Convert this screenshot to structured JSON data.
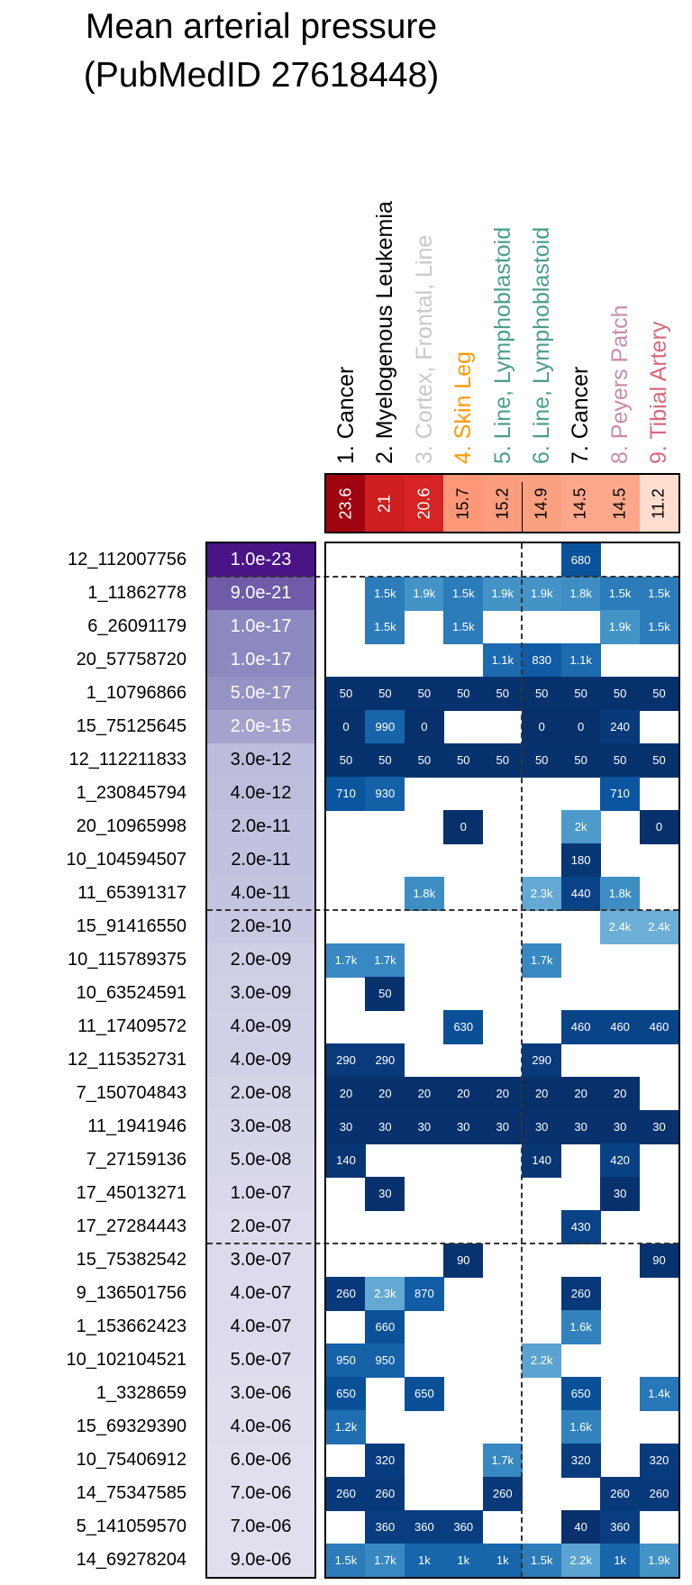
{
  "chart_data": {
    "type": "heatmap",
    "title": [
      "Mean arterial pressure",
      "(PubMedID 27618448)"
    ],
    "columns": [
      {
        "label": "1. Cancer",
        "color": "#000000",
        "score": "23.6"
      },
      {
        "label": "2. Myelogenous Leukemia",
        "color": "#000000",
        "score": "21"
      },
      {
        "label": "3. Cortex, Frontal, Line",
        "color": "#c8c8c8",
        "score": "20.6"
      },
      {
        "label": "4. Skin Leg",
        "color": "#ff9900",
        "score": "15.7"
      },
      {
        "label": "5. Line, Lymphoblastoid",
        "color": "#4a9f8a",
        "score": "15.2"
      },
      {
        "label": "6. Line, Lymphoblastoid",
        "color": "#4a9f8a",
        "score": "14.9"
      },
      {
        "label": "7. Cancer",
        "color": "#000000",
        "score": "14.5"
      },
      {
        "label": "8. Peyers Patch",
        "color": "#cc8aaa",
        "score": "14.5"
      },
      {
        "label": "9. Tibial Artery",
        "color": "#d9687a",
        "score": "11.2"
      }
    ],
    "rows": [
      {
        "snp": "12_112007756",
        "p": "1.0e-23",
        "cells": [
          null,
          null,
          null,
          null,
          null,
          null,
          "680",
          null,
          null
        ]
      },
      {
        "snp": "1_11862778",
        "p": "9.0e-21",
        "cells": [
          null,
          "1.5k",
          "1.9k",
          "1.5k",
          "1.9k",
          "1.9k",
          "1.8k",
          "1.5k",
          "1.5k"
        ]
      },
      {
        "snp": "6_26091179",
        "p": "1.0e-17",
        "cells": [
          null,
          "1.5k",
          null,
          "1.5k",
          null,
          null,
          null,
          "1.9k",
          "1.5k"
        ]
      },
      {
        "snp": "20_57758720",
        "p": "1.0e-17",
        "cells": [
          null,
          null,
          null,
          null,
          "1.1k",
          "830",
          "1.1k",
          null,
          null
        ]
      },
      {
        "snp": "1_10796866",
        "p": "5.0e-17",
        "cells": [
          "50",
          "50",
          "50",
          "50",
          "50",
          "50",
          "50",
          "50",
          "50"
        ]
      },
      {
        "snp": "15_75125645",
        "p": "2.0e-15",
        "cells": [
          "0",
          "990",
          "0",
          null,
          null,
          "0",
          "0",
          "240",
          null
        ]
      },
      {
        "snp": "12_112211833",
        "p": "3.0e-12",
        "cells": [
          "50",
          "50",
          "50",
          "50",
          "50",
          "50",
          "50",
          "50",
          "50"
        ]
      },
      {
        "snp": "1_230845794",
        "p": "4.0e-12",
        "cells": [
          "710",
          "930",
          null,
          null,
          null,
          null,
          null,
          "710",
          null
        ]
      },
      {
        "snp": "20_10965998",
        "p": "2.0e-11",
        "cells": [
          null,
          null,
          null,
          "0",
          null,
          null,
          "2k",
          null,
          "0"
        ]
      },
      {
        "snp": "10_104594507",
        "p": "2.0e-11",
        "cells": [
          null,
          null,
          null,
          null,
          null,
          null,
          "180",
          null,
          null
        ]
      },
      {
        "snp": "11_65391317",
        "p": "4.0e-11",
        "cells": [
          null,
          null,
          "1.8k",
          null,
          null,
          "2.3k",
          "440",
          "1.8k",
          null
        ]
      },
      {
        "snp": "15_91416550",
        "p": "2.0e-10",
        "cells": [
          null,
          null,
          null,
          null,
          null,
          null,
          null,
          "2.4k",
          "2.4k"
        ]
      },
      {
        "snp": "10_115789375",
        "p": "2.0e-09",
        "cells": [
          "1.7k",
          "1.7k",
          null,
          null,
          null,
          "1.7k",
          null,
          null,
          null
        ]
      },
      {
        "snp": "10_63524591",
        "p": "3.0e-09",
        "cells": [
          null,
          "50",
          null,
          null,
          null,
          null,
          null,
          null,
          null
        ]
      },
      {
        "snp": "11_17409572",
        "p": "4.0e-09",
        "cells": [
          null,
          null,
          null,
          "630",
          null,
          null,
          "460",
          "460",
          "460"
        ]
      },
      {
        "snp": "12_115352731",
        "p": "4.0e-09",
        "cells": [
          "290",
          "290",
          null,
          null,
          null,
          "290",
          null,
          null,
          null
        ]
      },
      {
        "snp": "7_150704843",
        "p": "2.0e-08",
        "cells": [
          "20",
          "20",
          "20",
          "20",
          "20",
          "20",
          "20",
          "20",
          null
        ]
      },
      {
        "snp": "11_1941946",
        "p": "3.0e-08",
        "cells": [
          "30",
          "30",
          "30",
          "30",
          "30",
          "30",
          "30",
          "30",
          "30"
        ]
      },
      {
        "snp": "7_27159136",
        "p": "5.0e-08",
        "cells": [
          "140",
          null,
          null,
          null,
          null,
          "140",
          null,
          "420",
          null
        ]
      },
      {
        "snp": "17_45013271",
        "p": "1.0e-07",
        "cells": [
          null,
          "30",
          null,
          null,
          null,
          null,
          null,
          "30",
          null
        ]
      },
      {
        "snp": "17_27284443",
        "p": "2.0e-07",
        "cells": [
          null,
          null,
          null,
          null,
          null,
          null,
          "430",
          null,
          null
        ]
      },
      {
        "snp": "15_75382542",
        "p": "3.0e-07",
        "cells": [
          null,
          null,
          null,
          "90",
          null,
          null,
          null,
          null,
          "90"
        ]
      },
      {
        "snp": "9_136501756",
        "p": "4.0e-07",
        "cells": [
          "260",
          "2.3k",
          "870",
          null,
          null,
          null,
          "260",
          null,
          null
        ]
      },
      {
        "snp": "1_153662423",
        "p": "4.0e-07",
        "cells": [
          null,
          "660",
          null,
          null,
          null,
          null,
          "1.6k",
          null,
          null
        ]
      },
      {
        "snp": "10_102104521",
        "p": "5.0e-07",
        "cells": [
          "950",
          "950",
          null,
          null,
          null,
          "2.2k",
          null,
          null,
          null
        ]
      },
      {
        "snp": "1_3328659",
        "p": "3.0e-06",
        "cells": [
          "650",
          null,
          "650",
          null,
          null,
          null,
          "650",
          null,
          "1.4k"
        ]
      },
      {
        "snp": "15_69329390",
        "p": "4.0e-06",
        "cells": [
          "1.2k",
          null,
          null,
          null,
          null,
          null,
          "1.6k",
          null,
          null
        ]
      },
      {
        "snp": "10_75406912",
        "p": "6.0e-06",
        "cells": [
          null,
          "320",
          null,
          null,
          "1.7k",
          null,
          "320",
          null,
          "320"
        ]
      },
      {
        "snp": "14_75347585",
        "p": "7.0e-06",
        "cells": [
          "260",
          "260",
          null,
          null,
          "260",
          null,
          null,
          "260",
          "260"
        ]
      },
      {
        "snp": "5_141059570",
        "p": "7.0e-06",
        "cells": [
          null,
          "360",
          "360",
          "360",
          null,
          null,
          "40",
          "360",
          null
        ]
      },
      {
        "snp": "14_69278204",
        "p": "9.0e-06",
        "cells": [
          "1.5k",
          "1.7k",
          "1k",
          "1k",
          "1k",
          "1.5k",
          "2.2k",
          "1k",
          "1.9k"
        ]
      }
    ],
    "row_group_breaks_after": [
      1,
      11,
      21
    ],
    "column_group_break_after": 5
  }
}
